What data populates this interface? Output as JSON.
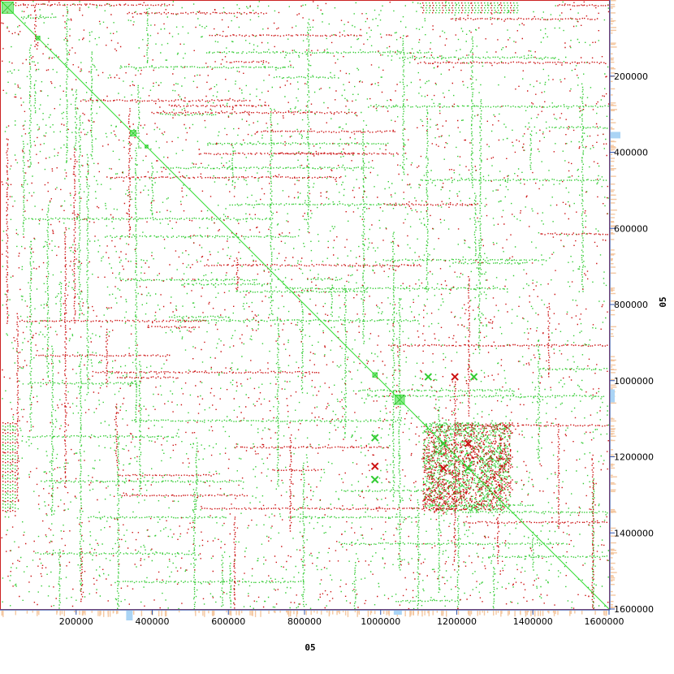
{
  "chart_data": {
    "type": "scatter",
    "title": "",
    "xlabel": "05",
    "ylabel": "05",
    "xlim": [
      0,
      1600000
    ],
    "ylim": [
      0,
      1600000
    ],
    "y_inverted": true,
    "x_ticks": [
      200000,
      400000,
      600000,
      800000,
      1000000,
      1200000,
      1400000,
      1600000
    ],
    "y_ticks": [
      200000,
      400000,
      600000,
      800000,
      1000000,
      1200000,
      1400000,
      1600000
    ],
    "x_tick_labels": [
      "200000",
      "400000",
      "600000",
      "800000",
      "1000000",
      "1200000",
      "1400000",
      "1600000"
    ],
    "y_tick_labels": [
      "200000",
      "400000",
      "600000",
      "800000",
      "1000000",
      "1200000",
      "1400000",
      "1600000"
    ],
    "grid": false,
    "legend": "none",
    "diagonal": {
      "from": [
        0,
        0
      ],
      "to": [
        1600000,
        1600000
      ],
      "color": "#33dd33"
    },
    "diagonal_blocks": [
      {
        "center": 20000,
        "size": 30000
      },
      {
        "center": 100000,
        "size": 10000
      },
      {
        "center": 350000,
        "size": 15000
      },
      {
        "center": 385000,
        "size": 8000
      },
      {
        "center": 985000,
        "size": 12000
      },
      {
        "center": 1050000,
        "size": 25000
      }
    ],
    "dense_region": {
      "x": [
        1110000,
        1340000
      ],
      "y": [
        1110000,
        1340000
      ]
    },
    "hit_markers": [
      {
        "x": 1195000,
        "y": 990000,
        "color": "red"
      },
      {
        "x": 1125000,
        "y": 990000,
        "color": "green"
      },
      {
        "x": 1245000,
        "y": 990000,
        "color": "green"
      },
      {
        "x": 985000,
        "y": 1150000,
        "color": "green"
      },
      {
        "x": 985000,
        "y": 1225000,
        "color": "red"
      },
      {
        "x": 985000,
        "y": 1260000,
        "color": "green"
      },
      {
        "x": 1165000,
        "y": 1165000,
        "color": "green"
      },
      {
        "x": 1230000,
        "y": 1165000,
        "color": "red"
      },
      {
        "x": 1165000,
        "y": 1230000,
        "color": "red"
      },
      {
        "x": 1230000,
        "y": 1230000,
        "color": "green"
      }
    ],
    "colors": {
      "forward": "#33cc33",
      "reverse": "#cc1111",
      "diagonal": "#33dd33",
      "axis": "#3355aa",
      "coverage_blue": "#aad4f5",
      "coverage_orange": "#f4c7a0"
    }
  }
}
